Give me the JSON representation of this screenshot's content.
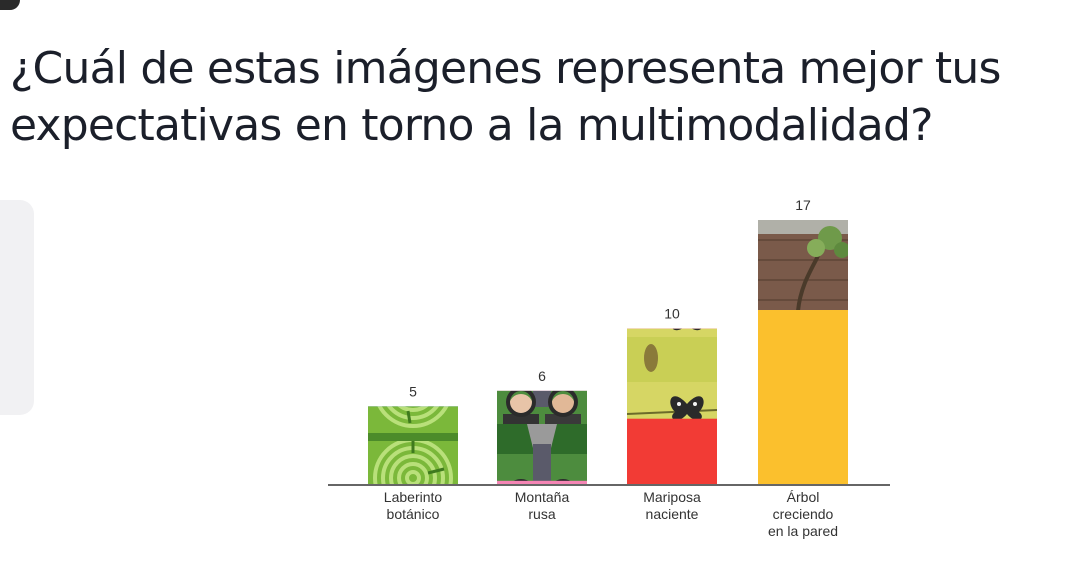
{
  "question": "¿Cuál de estas imágenes representa mejor tus expectativas en torno a la multimodalidad?",
  "chart_data": {
    "type": "bar",
    "categories": [
      [
        "Laberinto",
        "botánico"
      ],
      [
        "Montaña",
        "rusa"
      ],
      [
        "Mariposa",
        "naciente"
      ],
      [
        "Árbol",
        "creciendo",
        "en la pared"
      ]
    ],
    "values": [
      5,
      6,
      10,
      17
    ],
    "colors": [
      "#2a6cf0",
      "#f585b5",
      "#f23b35",
      "#fbc02d"
    ],
    "images": [
      "labyrinth-image",
      "roller-coaster-image",
      "butterfly-image",
      "tree-wall-image"
    ],
    "ylim": [
      0,
      17
    ],
    "grid": false,
    "legend": "none"
  }
}
